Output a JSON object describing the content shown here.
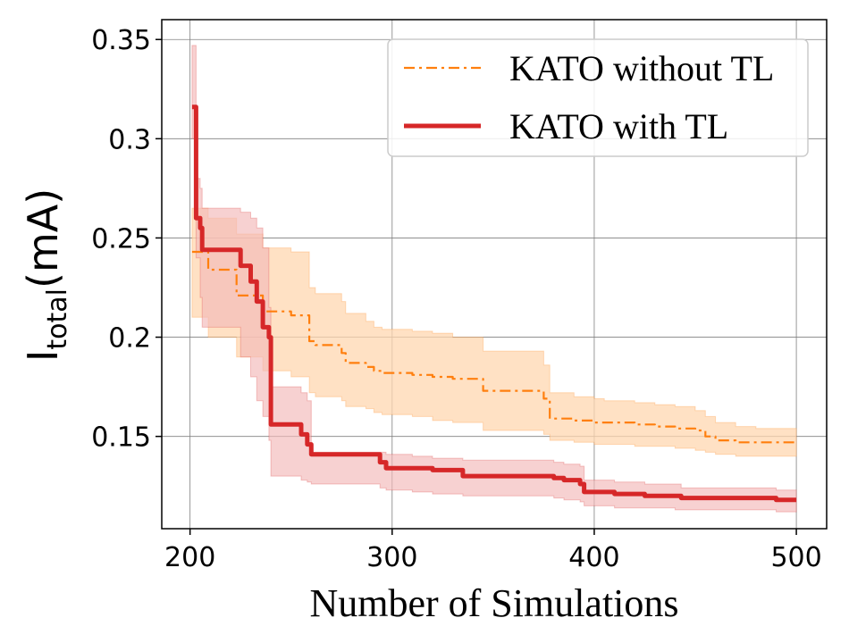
{
  "chart_data": {
    "type": "line",
    "title": "",
    "xlabel": "Number of Simulations",
    "ylabel": {
      "main": "I",
      "subscript": "total",
      "unit": "(mA)"
    },
    "xlim": [
      186,
      515
    ],
    "ylim": [
      0.1035,
      0.36
    ],
    "xticks": [
      200,
      300,
      400,
      500
    ],
    "yticks": [
      0.15,
      0.2,
      0.25,
      0.3,
      0.35
    ],
    "xtick_labels": [
      "200",
      "300",
      "400",
      "500"
    ],
    "ytick_labels": [
      "0.15",
      "0.2",
      "0.25",
      "0.3",
      "0.35"
    ],
    "grid": true,
    "legend_position": "top-right",
    "series": [
      {
        "name": "KATO without TL",
        "color": "#ff7f0e",
        "band_color": "#ffd7b0",
        "line_style": "dashdot",
        "x": [
          201,
          209,
          223,
          236,
          250,
          259,
          262,
          275,
          277,
          287,
          291,
          295,
          310,
          320,
          330,
          345,
          375,
          378,
          390,
          400,
          405,
          420,
          430,
          440,
          450,
          455,
          460,
          470,
          480,
          490,
          500
        ],
        "y": [
          0.243,
          0.234,
          0.221,
          0.213,
          0.211,
          0.198,
          0.196,
          0.192,
          0.187,
          0.185,
          0.183,
          0.182,
          0.181,
          0.18,
          0.179,
          0.173,
          0.169,
          0.159,
          0.158,
          0.157,
          0.157,
          0.156,
          0.155,
          0.154,
          0.153,
          0.15,
          0.148,
          0.147,
          0.147,
          0.147,
          0.147
        ],
        "lower": [
          0.21,
          0.2,
          0.19,
          0.183,
          0.18,
          0.172,
          0.17,
          0.168,
          0.165,
          0.164,
          0.162,
          0.161,
          0.16,
          0.158,
          0.157,
          0.153,
          0.151,
          0.148,
          0.147,
          0.146,
          0.146,
          0.145,
          0.145,
          0.144,
          0.143,
          0.142,
          0.141,
          0.14,
          0.14,
          0.14,
          0.14
        ],
        "upper": [
          0.265,
          0.26,
          0.252,
          0.245,
          0.243,
          0.225,
          0.222,
          0.218,
          0.212,
          0.208,
          0.205,
          0.204,
          0.203,
          0.202,
          0.2,
          0.193,
          0.186,
          0.172,
          0.17,
          0.169,
          0.168,
          0.167,
          0.166,
          0.165,
          0.163,
          0.16,
          0.157,
          0.155,
          0.154,
          0.154,
          0.154
        ]
      },
      {
        "name": "KATO with TL",
        "color": "#d62728",
        "band_color": "#f2b8b9",
        "line_style": "solid",
        "x": [
          201,
          203,
          205,
          206,
          225,
          230,
          233,
          236,
          239,
          240,
          255,
          258,
          260,
          270,
          294,
          297,
          310,
          320,
          335,
          380,
          385,
          393,
          395,
          405,
          410,
          425,
          440,
          443,
          460,
          490,
          500
        ],
        "y": [
          0.316,
          0.26,
          0.255,
          0.244,
          0.236,
          0.228,
          0.218,
          0.205,
          0.2,
          0.156,
          0.151,
          0.146,
          0.141,
          0.141,
          0.137,
          0.134,
          0.134,
          0.133,
          0.13,
          0.129,
          0.128,
          0.126,
          0.122,
          0.122,
          0.121,
          0.12,
          0.12,
          0.119,
          0.119,
          0.118,
          0.118
        ],
        "lower": [
          0.3,
          0.24,
          0.22,
          0.205,
          0.19,
          0.18,
          0.168,
          0.16,
          0.148,
          0.13,
          0.128,
          0.127,
          0.126,
          0.126,
          0.124,
          0.123,
          0.122,
          0.121,
          0.12,
          0.119,
          0.118,
          0.117,
          0.115,
          0.115,
          0.114,
          0.114,
          0.113,
          0.113,
          0.113,
          0.112,
          0.112
        ],
        "upper": [
          0.347,
          0.28,
          0.275,
          0.265,
          0.263,
          0.26,
          0.255,
          0.245,
          0.215,
          0.175,
          0.172,
          0.168,
          0.142,
          0.142,
          0.142,
          0.141,
          0.14,
          0.139,
          0.138,
          0.137,
          0.136,
          0.135,
          0.128,
          0.128,
          0.127,
          0.126,
          0.126,
          0.124,
          0.124,
          0.123,
          0.123
        ]
      }
    ]
  }
}
